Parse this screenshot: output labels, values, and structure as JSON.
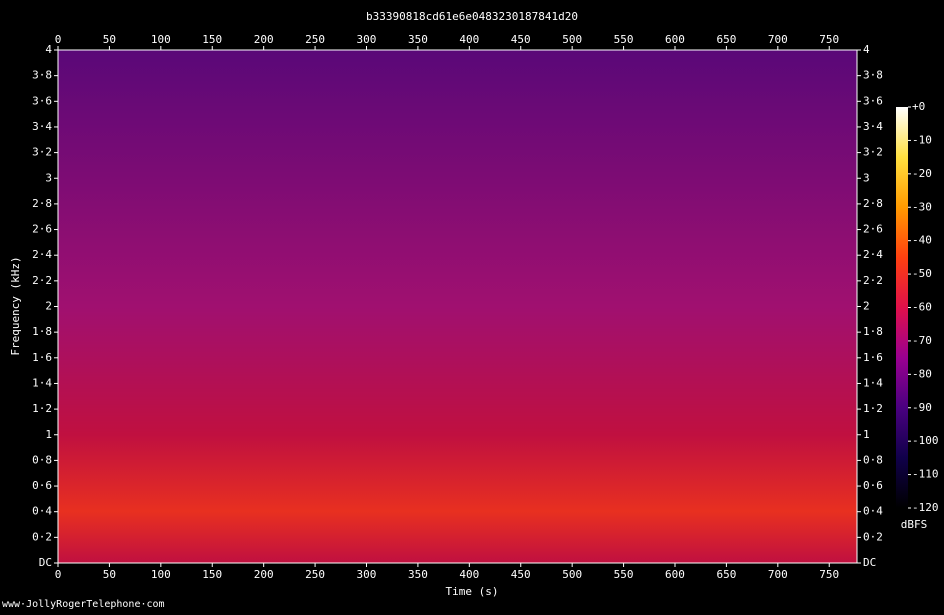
{
  "chart_data": {
    "type": "spectrogram",
    "title": "b33390818cd61e6e0483230187841d20",
    "xlabel": "Time (s)",
    "ylabel": "Frequency (kHz)",
    "xlim": [
      0,
      777
    ],
    "xticks": [
      0,
      50,
      100,
      150,
      200,
      250,
      300,
      350,
      400,
      450,
      500,
      550,
      600,
      650,
      700,
      750
    ],
    "ylim": [
      0,
      4
    ],
    "yticks": [
      {
        "value": 0,
        "label": "DC"
      },
      {
        "value": 0.2,
        "label": "0·2"
      },
      {
        "value": 0.4,
        "label": "0·4"
      },
      {
        "value": 0.6,
        "label": "0·6"
      },
      {
        "value": 0.8,
        "label": "0·8"
      },
      1,
      {
        "value": 1.2,
        "label": "1·2"
      },
      {
        "value": 1.4,
        "label": "1·4"
      },
      {
        "value": 1.6,
        "label": "1·6"
      },
      {
        "value": 1.8,
        "label": "1·8"
      },
      2,
      {
        "value": 2.2,
        "label": "2·2"
      },
      {
        "value": 2.4,
        "label": "2·4"
      },
      {
        "value": 2.6,
        "label": "2·6"
      },
      {
        "value": 2.8,
        "label": "2·8"
      },
      3,
      {
        "value": 3.2,
        "label": "3·2"
      },
      {
        "value": 3.4,
        "label": "3·4"
      },
      {
        "value": 3.6,
        "label": "3·6"
      },
      {
        "value": 3.8,
        "label": "3·8"
      },
      4
    ],
    "colorbar": {
      "label": "dBFS",
      "lim": [
        -120,
        0
      ],
      "ticks": [
        {
          "value": 0,
          "label": "+0"
        },
        -10,
        -20,
        -30,
        -40,
        -50,
        -60,
        -70,
        -80,
        -90,
        -100,
        -110,
        -120
      ],
      "colormap": [
        "#000000",
        "#10004a",
        "#4a0080",
        "#9a0090",
        "#e0104a",
        "#ff4010",
        "#ff9a00",
        "#ffe040",
        "#ffffff"
      ]
    },
    "footer": "www·JollyRogerTelephone·com"
  }
}
